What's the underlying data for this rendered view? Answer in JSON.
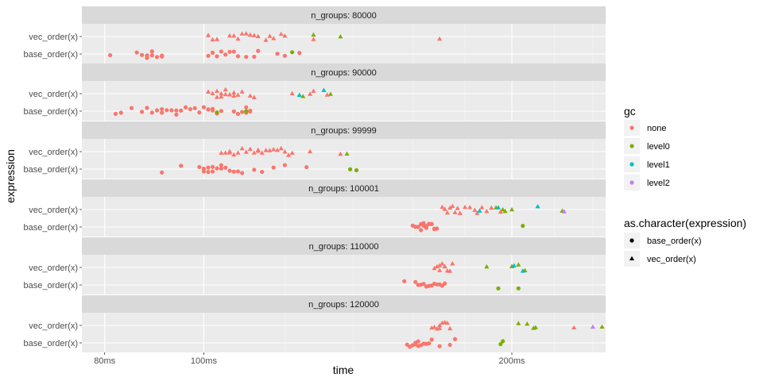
{
  "chart_data": {
    "type": "scatter",
    "xlabel": "time",
    "ylabel": "expression",
    "x_scale": "log",
    "x_unit": "ms",
    "xlim": [
      76,
      247
    ],
    "x_ticks": [
      {
        "value": 80,
        "label": "80ms"
      },
      {
        "value": 100,
        "label": "100ms"
      },
      {
        "value": 200,
        "label": "200ms"
      }
    ],
    "y_categories": [
      "base_order(x)",
      "vec_order(x)"
    ],
    "color_legend": {
      "title": "gc",
      "items": [
        {
          "key": "none",
          "label": "none",
          "color": "#F8766D"
        },
        {
          "key": "level0",
          "label": "level0",
          "color": "#7CAE00"
        },
        {
          "key": "level1",
          "label": "level1",
          "color": "#00BFC4"
        },
        {
          "key": "level2",
          "label": "level2",
          "color": "#C77CFF"
        }
      ]
    },
    "shape_legend": {
      "title": "as.character(expression)",
      "items": [
        {
          "key": "base",
          "label": "base_order(x)",
          "shape": "circle"
        },
        {
          "key": "vec",
          "label": "vec_order(x)",
          "shape": "triangle"
        }
      ]
    },
    "facets": [
      {
        "label": "n_groups: 80000",
        "vec": {
          "none": [
            101,
            102,
            103,
            106,
            107,
            108,
            109,
            110,
            111,
            112,
            113,
            115,
            116,
            117,
            119,
            120,
            128,
            170
          ],
          "level0": [
            128,
            136
          ]
        },
        "base": {
          "none": [
            81,
            86,
            87,
            88,
            88,
            89,
            89,
            90,
            91,
            91,
            101,
            102,
            103,
            104,
            105,
            106,
            107,
            108,
            110,
            112,
            113,
            118,
            120,
            124
          ],
          "level0": [
            122
          ]
        }
      },
      {
        "label": "n_groups: 90000",
        "vec": {
          "none": [
            101,
            102,
            103,
            103,
            104,
            104,
            105,
            105,
            106,
            106,
            107,
            107,
            108,
            109,
            111,
            112,
            122,
            128,
            127,
            132
          ],
          "level0": [
            125,
            133
          ],
          "level1": [
            124,
            131
          ]
        },
        "base": {
          "none": [
            82,
            83,
            85,
            87,
            88,
            89,
            90,
            91,
            91,
            92,
            93,
            94,
            94,
            95,
            96,
            97,
            98,
            99,
            100,
            101,
            101,
            102,
            102,
            103,
            104,
            107,
            108,
            109,
            110,
            110,
            111,
            111
          ],
          "level0": [
            110,
            103
          ]
        }
      },
      {
        "label": "n_groups: 99999",
        "vec": {
          "none": [
            104,
            105,
            106,
            106,
            107,
            108,
            109,
            110,
            111,
            112,
            113,
            113,
            114,
            115,
            116,
            117,
            118,
            119,
            120,
            121,
            122,
            127,
            136
          ],
          "level0": [
            138
          ]
        },
        "base": {
          "none": [
            91,
            95,
            99,
            100,
            100,
            101,
            101,
            102,
            102,
            103,
            104,
            104,
            105,
            106,
            107,
            108,
            109,
            112,
            114,
            117,
            120,
            126
          ],
          "level0": [
            139,
            141
          ]
        }
      },
      {
        "label": "n_groups: 100001",
        "vec": {
          "none": [
            171,
            172,
            173,
            174,
            175,
            176,
            177,
            178,
            180,
            182,
            184,
            185,
            187,
            189,
            191,
            195
          ],
          "level0": [
            193,
            196,
            197,
            200,
            224
          ],
          "level1": [
            186,
            194,
            212
          ],
          "level2": [
            225
          ]
        },
        "base": {
          "none": [
            160,
            161,
            162,
            163,
            163,
            164,
            164,
            165,
            165,
            166,
            166,
            167,
            167,
            168,
            168,
            169
          ],
          "level0": [
            205
          ]
        }
      },
      {
        "label": "n_groups: 110000",
        "vec": {
          "none": [
            168,
            169,
            170,
            170,
            171,
            172,
            172,
            173,
            174,
            175
          ],
          "level0": [
            189,
            200,
            203,
            206
          ],
          "level1": [
            201,
            205
          ]
        },
        "base": {
          "none": [
            157,
            161,
            162,
            163,
            164,
            165,
            166,
            167,
            168,
            169,
            170,
            171,
            172
          ],
          "level0": [
            194,
            203
          ]
        }
      },
      {
        "label": "n_groups: 120000",
        "vec": {
          "none": [
            167,
            168,
            169,
            170,
            170,
            171,
            172,
            173,
            174,
            230
          ],
          "level0": [
            203,
            207,
            210,
            211,
            245
          ],
          "level2": [
            240
          ]
        },
        "base": {
          "none": [
            158,
            159,
            160,
            161,
            161,
            162,
            162,
            163,
            164,
            165,
            166,
            167,
            170,
            174,
            176
          ],
          "level0": [
            195,
            196
          ]
        }
      }
    ]
  }
}
